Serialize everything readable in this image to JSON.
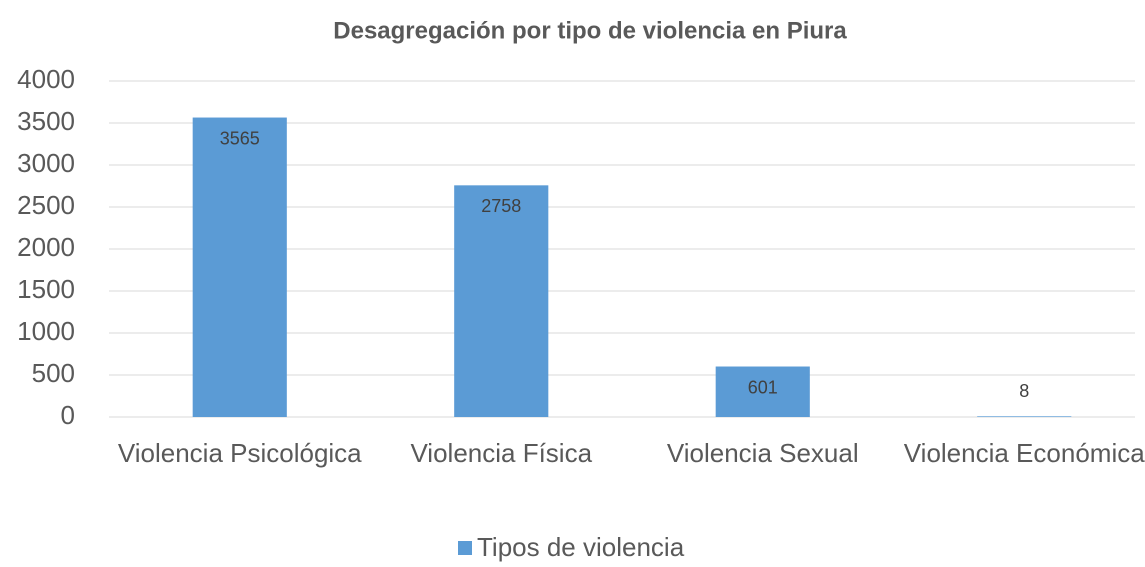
{
  "chart_data": {
    "type": "bar",
    "title": "Desagregación por tipo de violencia en Piura",
    "categories": [
      "Violencia Psicológica",
      "Violencia Física",
      "Violencia Sexual",
      "Violencia Económica"
    ],
    "series": [
      {
        "name": "Tipos de violencia",
        "color": "#5b9bd5",
        "values": [
          3565,
          2758,
          601,
          8
        ]
      }
    ],
    "ylim": [
      0,
      4000
    ],
    "yticks": [
      0,
      500,
      1000,
      1500,
      2000,
      2500,
      3000,
      3500,
      4000
    ],
    "grid": true,
    "legend": "bottom"
  }
}
